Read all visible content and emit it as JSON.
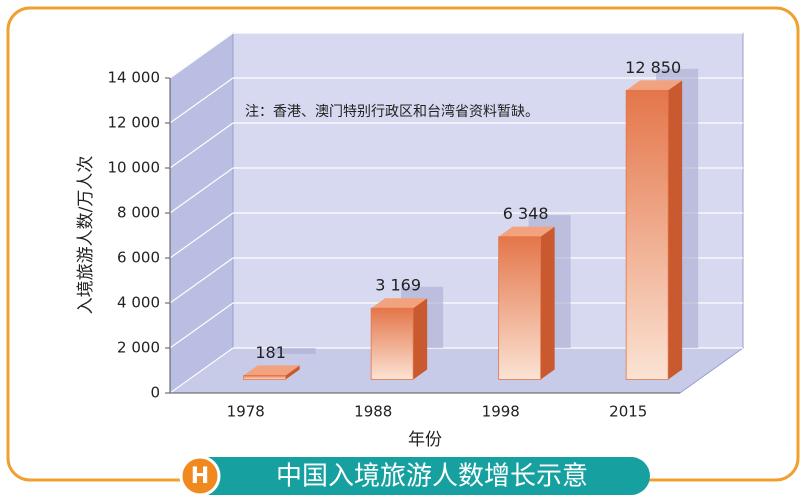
{
  "chart_data": {
    "type": "bar3d",
    "title": "中国入境旅游人数增长示意",
    "badge": "H",
    "annotation": "注：香港、澳门特别行政区和台湾省资料暂缺。",
    "x_label": "年份",
    "y_label": "入境旅游人数/万人次",
    "categories": [
      "1978",
      "1988",
      "1998",
      "2015"
    ],
    "values": [
      181,
      3169,
      6348,
      12850
    ],
    "value_labels": [
      "181",
      "3 169",
      "6 348",
      "12 850"
    ],
    "color": "#e4764a",
    "ylim": [
      0,
      14000
    ],
    "yticks": [
      0,
      {
        "value": 2000,
        "label": "2 000"
      },
      {
        "value": 4000,
        "label": "4 000"
      },
      {
        "value": 6000,
        "label": "6 000"
      },
      {
        "value": 8000,
        "label": "8 000"
      },
      {
        "value": 10000,
        "label": "10 000"
      },
      {
        "value": 12000,
        "label": "12 000"
      },
      {
        "value": 14000,
        "label": "14 000"
      }
    ],
    "grid": true
  }
}
